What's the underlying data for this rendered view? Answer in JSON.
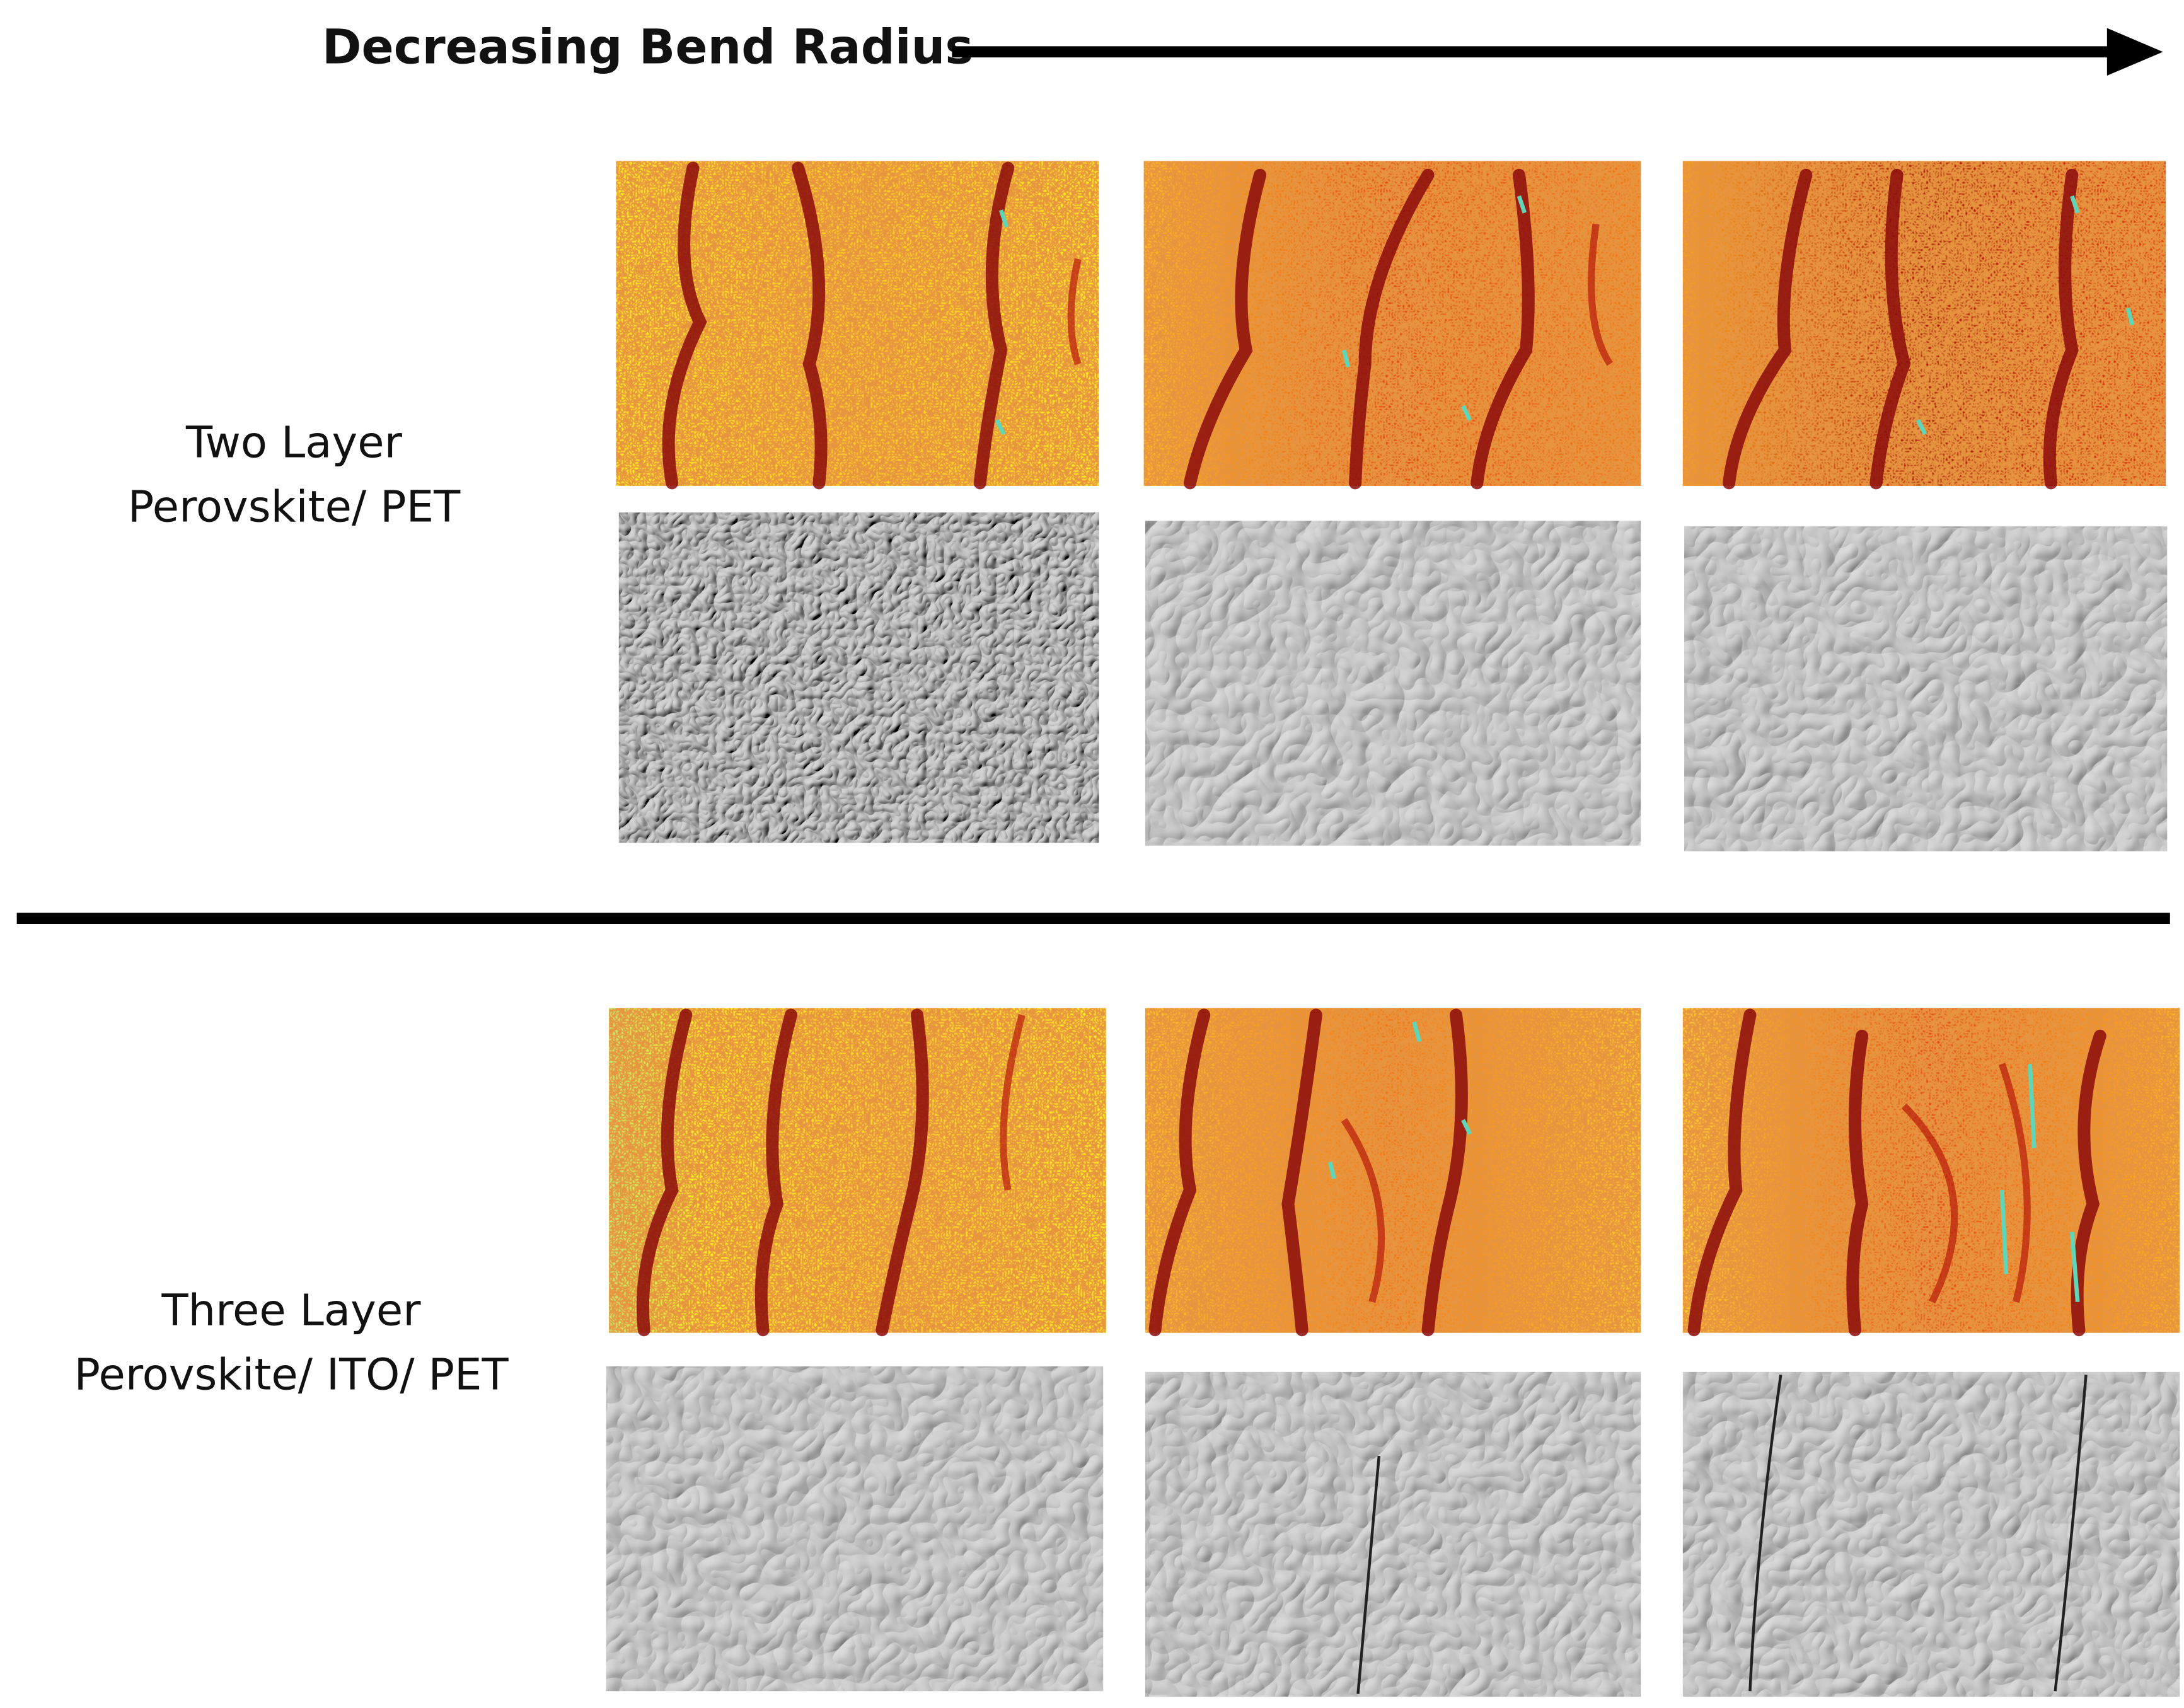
{
  "header": {
    "title": "Decreasing Bend Radius"
  },
  "rows": [
    {
      "label": [
        "Two Layer",
        "Perovskite/ PET"
      ]
    },
    {
      "label": [
        "Three Layer",
        "Perovskite/ ITO/ PET"
      ]
    }
  ]
}
